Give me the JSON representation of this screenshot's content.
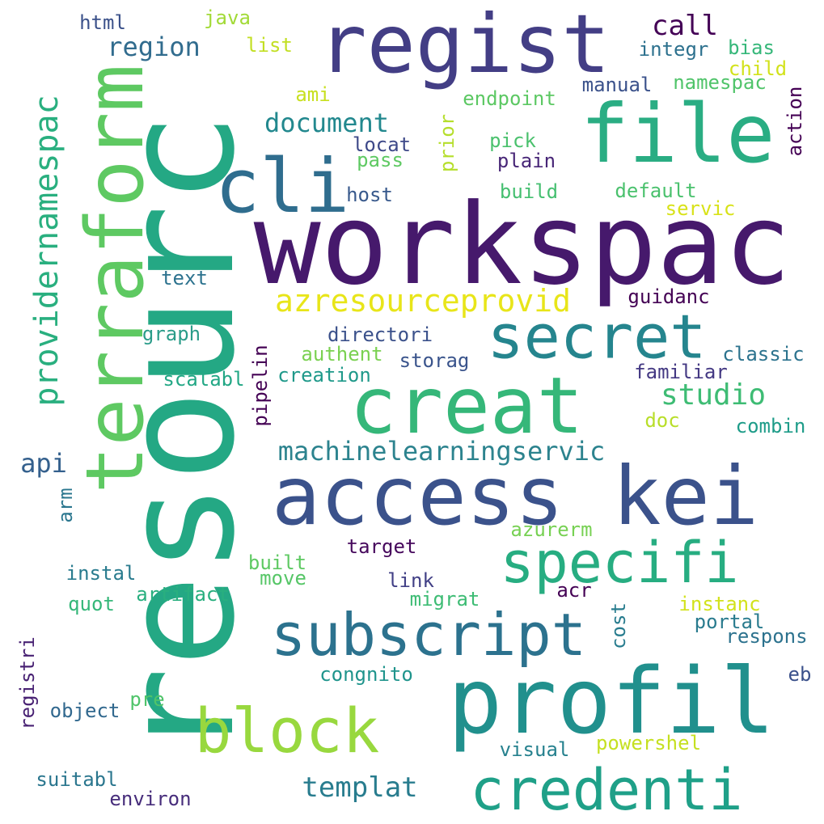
{
  "words": [
    {
      "text": "resourc",
      "color": "#24a884"
    },
    {
      "text": "workspac",
      "color": "#46196c"
    },
    {
      "text": "regist",
      "color": "#433e85"
    },
    {
      "text": "terraform",
      "color": "#5ec962"
    },
    {
      "text": "file",
      "color": "#2aad83"
    },
    {
      "text": "cli",
      "color": "#2f6d8e"
    },
    {
      "text": "profil",
      "color": "#21908d"
    },
    {
      "text": "access kei",
      "color": "#3b528b"
    },
    {
      "text": "creat",
      "color": "#35b779"
    },
    {
      "text": "secret",
      "color": "#25858e"
    },
    {
      "text": "specifi",
      "color": "#27ad81"
    },
    {
      "text": "subscript",
      "color": "#2c728e"
    },
    {
      "text": "block",
      "color": "#98d83e"
    },
    {
      "text": "credenti",
      "color": "#1fa088"
    },
    {
      "text": "azresourceprovid",
      "color": "#e8e519"
    },
    {
      "text": "providernamespac",
      "color": "#29af7f"
    },
    {
      "text": "machinelearningservic",
      "color": "#2c838e"
    },
    {
      "text": "document",
      "color": "#22888e"
    },
    {
      "text": "region",
      "color": "#316c8e"
    },
    {
      "text": "call",
      "color": "#440256"
    },
    {
      "text": "studio",
      "color": "#3ebc74"
    },
    {
      "text": "templat",
      "color": "#287c8e"
    },
    {
      "text": "api",
      "color": "#34608d"
    },
    {
      "text": "html",
      "color": "#3b518a"
    },
    {
      "text": "java",
      "color": "#a2da37"
    },
    {
      "text": "list",
      "color": "#c2df23"
    },
    {
      "text": "integr",
      "color": "#2d718e"
    },
    {
      "text": "bias",
      "color": "#35b779"
    },
    {
      "text": "child",
      "color": "#d2e21b"
    },
    {
      "text": "manual",
      "color": "#3b528b"
    },
    {
      "text": "namespac",
      "color": "#50c46a"
    },
    {
      "text": "action",
      "color": "#440154"
    },
    {
      "text": "ami",
      "color": "#c8e020"
    },
    {
      "text": "endpoint",
      "color": "#5cc863"
    },
    {
      "text": "prior",
      "color": "#b5de2b"
    },
    {
      "text": "pick",
      "color": "#4ac16d"
    },
    {
      "text": "locat",
      "color": "#3e4989"
    },
    {
      "text": "plain",
      "color": "#482677"
    },
    {
      "text": "pass",
      "color": "#5ec962"
    },
    {
      "text": "host",
      "color": "#38598c"
    },
    {
      "text": "build",
      "color": "#45bf70"
    },
    {
      "text": "default",
      "color": "#4ac16d"
    },
    {
      "text": "servic",
      "color": "#d8e219"
    },
    {
      "text": "text",
      "color": "#2c728e"
    },
    {
      "text": "guidanc",
      "color": "#440154"
    },
    {
      "text": "graph",
      "color": "#2a9c89"
    },
    {
      "text": "directori",
      "color": "#3b518b"
    },
    {
      "text": "pipelin",
      "color": "#440154"
    },
    {
      "text": "authent",
      "color": "#7ad151"
    },
    {
      "text": "storag",
      "color": "#3a548c"
    },
    {
      "text": "classic",
      "color": "#2c738e"
    },
    {
      "text": "scalabl",
      "color": "#22a785"
    },
    {
      "text": "creation",
      "color": "#1f998a"
    },
    {
      "text": "familiar",
      "color": "#443983"
    },
    {
      "text": "doc",
      "color": "#b8de29"
    },
    {
      "text": "combin",
      "color": "#1e9c89"
    },
    {
      "text": "arm",
      "color": "#2a768e"
    },
    {
      "text": "azurerm",
      "color": "#77d153"
    },
    {
      "text": "target",
      "color": "#46085c"
    },
    {
      "text": "instal",
      "color": "#297b8e"
    },
    {
      "text": "built",
      "color": "#5ec962"
    },
    {
      "text": "move",
      "color": "#56c667"
    },
    {
      "text": "link",
      "color": "#424086"
    },
    {
      "text": "artifact",
      "color": "#29af7f"
    },
    {
      "text": "quot",
      "color": "#35b779"
    },
    {
      "text": "migrat",
      "color": "#3dbc74"
    },
    {
      "text": "acr",
      "color": "#440154"
    },
    {
      "text": "cost",
      "color": "#287c8e"
    },
    {
      "text": "instanc",
      "color": "#d2e21b"
    },
    {
      "text": "portal",
      "color": "#297b8e"
    },
    {
      "text": "respons",
      "color": "#2c728e"
    },
    {
      "text": "registri",
      "color": "#482173"
    },
    {
      "text": "congnito",
      "color": "#1f948c"
    },
    {
      "text": "eb",
      "color": "#3b518b"
    },
    {
      "text": "object",
      "color": "#31688e"
    },
    {
      "text": "pre",
      "color": "#50c46a"
    },
    {
      "text": "visual",
      "color": "#26818e"
    },
    {
      "text": "powershel",
      "color": "#c5e021"
    },
    {
      "text": "suitabl",
      "color": "#2a768e"
    },
    {
      "text": "environ",
      "color": "#472d7b"
    }
  ]
}
